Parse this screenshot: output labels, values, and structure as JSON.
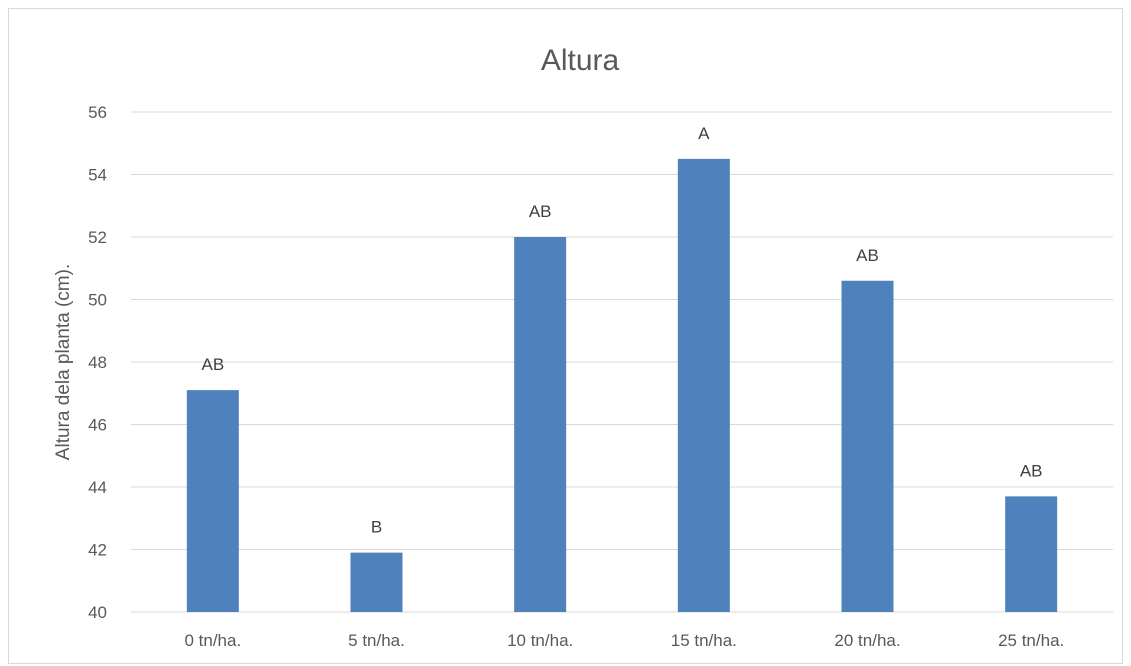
{
  "chart_data": {
    "type": "bar",
    "title": "Altura",
    "xlabel": "",
    "ylabel": "Altura dela planta (cm).",
    "categories": [
      "0 tn/ha.",
      "5 tn/ha.",
      "10 tn/ha.",
      "15 tn/ha.",
      "20 tn/ha.",
      "25 tn/ha."
    ],
    "values": [
      47.1,
      41.9,
      52.0,
      54.5,
      50.6,
      43.7
    ],
    "data_labels": [
      "AB",
      "B",
      "AB",
      "A",
      "AB",
      "AB"
    ],
    "ylim": [
      40,
      56
    ],
    "yticks": [
      40,
      42,
      44,
      46,
      48,
      50,
      52,
      54,
      56
    ],
    "grid": true,
    "legend": "none",
    "colors": {
      "bar": "#4f81bd",
      "grid": "#d9d9d9",
      "text": "#595959"
    }
  }
}
